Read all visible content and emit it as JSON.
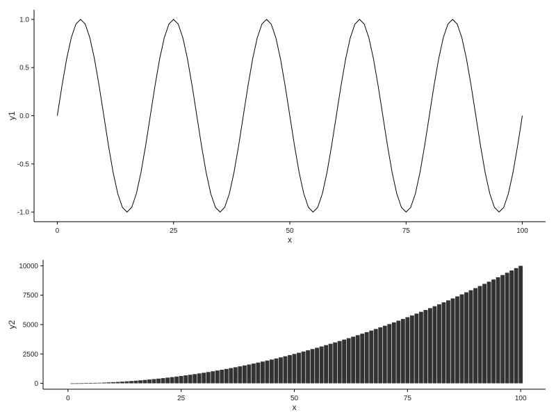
{
  "chart_data": [
    {
      "type": "line",
      "xlabel": "x",
      "ylabel": "y1",
      "xlim": [
        -5,
        105
      ],
      "ylim": [
        -1.1,
        1.1
      ],
      "xticks": [
        0,
        25,
        50,
        75,
        100
      ],
      "yticks": [
        -1.0,
        -0.5,
        0.0,
        0.5,
        1.0
      ],
      "ytick_labels": [
        "-1.0",
        "-0.5",
        "0.0",
        "0.5",
        "1.0"
      ],
      "grid": false,
      "color": "#000000",
      "x": [
        0,
        1,
        2,
        3,
        4,
        5,
        6,
        7,
        8,
        9,
        10,
        11,
        12,
        13,
        14,
        15,
        16,
        17,
        18,
        19,
        20,
        21,
        22,
        23,
        24,
        25,
        26,
        27,
        28,
        29,
        30,
        31,
        32,
        33,
        34,
        35,
        36,
        37,
        38,
        39,
        40,
        41,
        42,
        43,
        44,
        45,
        46,
        47,
        48,
        49,
        50,
        51,
        52,
        53,
        54,
        55,
        56,
        57,
        58,
        59,
        60,
        61,
        62,
        63,
        64,
        65,
        66,
        67,
        68,
        69,
        70,
        71,
        72,
        73,
        74,
        75,
        76,
        77,
        78,
        79,
        80,
        81,
        82,
        83,
        84,
        85,
        86,
        87,
        88,
        89,
        90,
        91,
        92,
        93,
        94,
        95,
        96,
        97,
        98,
        99,
        100
      ],
      "y": [
        0,
        0.309,
        0.5878,
        0.809,
        0.9511,
        1,
        0.9511,
        0.809,
        0.5878,
        0.309,
        0,
        -0.309,
        -0.5878,
        -0.809,
        -0.9511,
        -1,
        -0.9511,
        -0.809,
        -0.5878,
        -0.309,
        0,
        0.309,
        0.5878,
        0.809,
        0.9511,
        1,
        0.9511,
        0.809,
        0.5878,
        0.309,
        0,
        -0.309,
        -0.5878,
        -0.809,
        -0.9511,
        -1,
        -0.9511,
        -0.809,
        -0.5878,
        -0.309,
        0,
        0.309,
        0.5878,
        0.809,
        0.9511,
        1,
        0.9511,
        0.809,
        0.5878,
        0.309,
        0,
        -0.309,
        -0.5878,
        -0.809,
        -0.9511,
        -1,
        -0.9511,
        -0.809,
        -0.5878,
        -0.309,
        0,
        0.309,
        0.5878,
        0.809,
        0.9511,
        1,
        0.9511,
        0.809,
        0.5878,
        0.309,
        0,
        -0.309,
        -0.5878,
        -0.809,
        -0.9511,
        -1,
        -0.9511,
        -0.809,
        -0.5878,
        -0.309,
        0,
        0.309,
        0.5878,
        0.809,
        0.9511,
        1,
        0.9511,
        0.809,
        0.5878,
        0.309,
        0,
        -0.309,
        -0.5878,
        -0.809,
        -0.9511,
        -1,
        -0.9511,
        -0.809,
        -0.5878,
        -0.309,
        0
      ]
    },
    {
      "type": "bar",
      "xlabel": "x",
      "ylabel": "y2",
      "xlim": [
        -5.5,
        105.5
      ],
      "ylim": [
        -500,
        10500
      ],
      "xticks": [
        0,
        25,
        50,
        75,
        100
      ],
      "yticks": [
        0,
        2500,
        5000,
        7500,
        10000
      ],
      "grid": false,
      "color": "#333333",
      "x": [
        1,
        2,
        3,
        4,
        5,
        6,
        7,
        8,
        9,
        10,
        11,
        12,
        13,
        14,
        15,
        16,
        17,
        18,
        19,
        20,
        21,
        22,
        23,
        24,
        25,
        26,
        27,
        28,
        29,
        30,
        31,
        32,
        33,
        34,
        35,
        36,
        37,
        38,
        39,
        40,
        41,
        42,
        43,
        44,
        45,
        46,
        47,
        48,
        49,
        50,
        51,
        52,
        53,
        54,
        55,
        56,
        57,
        58,
        59,
        60,
        61,
        62,
        63,
        64,
        65,
        66,
        67,
        68,
        69,
        70,
        71,
        72,
        73,
        74,
        75,
        76,
        77,
        78,
        79,
        80,
        81,
        82,
        83,
        84,
        85,
        86,
        87,
        88,
        89,
        90,
        91,
        92,
        93,
        94,
        95,
        96,
        97,
        98,
        99,
        100
      ],
      "y": [
        1,
        4,
        9,
        16,
        25,
        36,
        49,
        64,
        81,
        100,
        121,
        144,
        169,
        196,
        225,
        256,
        289,
        324,
        361,
        400,
        441,
        484,
        529,
        576,
        625,
        676,
        729,
        784,
        841,
        900,
        961,
        1024,
        1089,
        1156,
        1225,
        1296,
        1369,
        1444,
        1521,
        1600,
        1681,
        1764,
        1849,
        1936,
        2025,
        2116,
        2209,
        2304,
        2401,
        2500,
        2601,
        2704,
        2809,
        2916,
        3025,
        3136,
        3249,
        3364,
        3481,
        3600,
        3721,
        3844,
        3969,
        4096,
        4225,
        4356,
        4489,
        4624,
        4761,
        4900,
        5041,
        5184,
        5329,
        5476,
        5625,
        5776,
        5929,
        6084,
        6241,
        6400,
        6561,
        6724,
        6889,
        7056,
        7225,
        7396,
        7569,
        7744,
        7921,
        8100,
        8281,
        8464,
        8649,
        8836,
        9025,
        9216,
        9409,
        9604,
        9801,
        10000
      ]
    }
  ]
}
